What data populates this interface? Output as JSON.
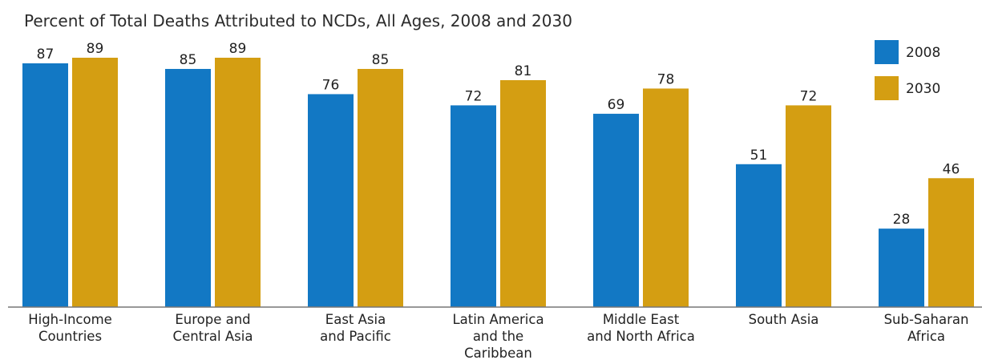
{
  "chart_data": {
    "type": "bar",
    "title": "Percent of Total Deaths Attributed to NCDs, All Ages, 2008 and 2030",
    "xlabel": "",
    "ylabel": "",
    "ylim": [
      0,
      89
    ],
    "grid": false,
    "legend_position": "top-right",
    "categories": [
      [
        "High-Income",
        "Countries"
      ],
      [
        "Europe and",
        "Central Asia"
      ],
      [
        "East Asia",
        "and Pacific"
      ],
      [
        "Latin America",
        "and the",
        "Caribbean"
      ],
      [
        "Middle East",
        "and North Africa"
      ],
      [
        "South Asia"
      ],
      [
        "Sub-Saharan",
        "Africa"
      ]
    ],
    "series": [
      {
        "name": "2008",
        "color": "#1278c4",
        "values": [
          87,
          85,
          76,
          72,
          69,
          51,
          28
        ]
      },
      {
        "name": "2030",
        "color": "#d49e12",
        "values": [
          89,
          89,
          85,
          81,
          78,
          72,
          46
        ]
      }
    ]
  }
}
